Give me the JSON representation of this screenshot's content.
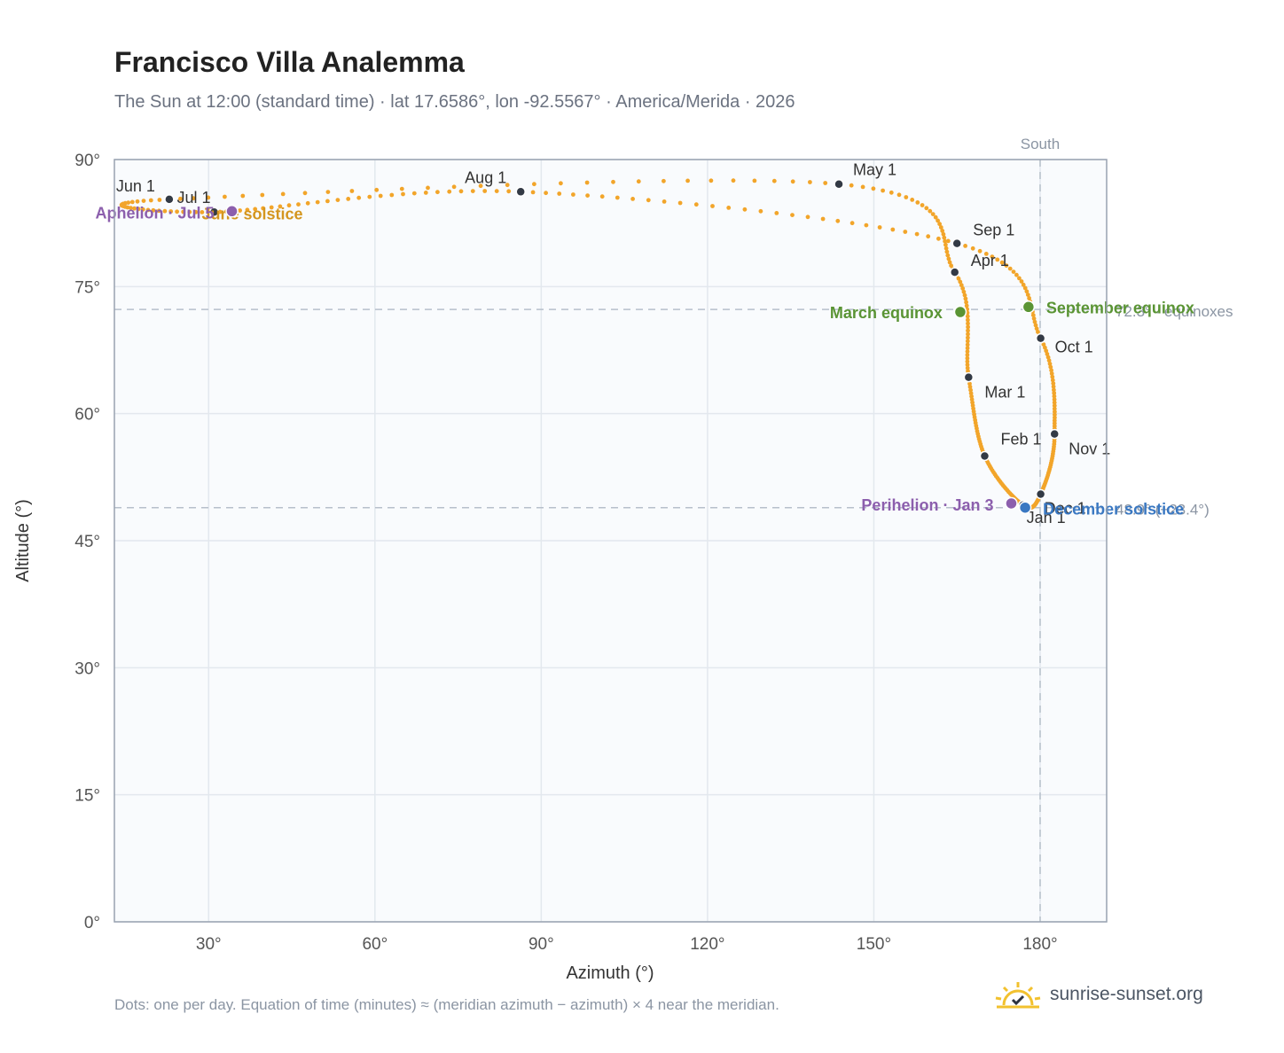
{
  "title": "Francisco Villa Analemma",
  "subtitle": "The Sun at 12:00 (standard time) · lat 17.6586°, lon -92.5567° · America/Merida · 2026",
  "footnote": "Dots: one per day. Equation of time (minutes) ≈ (meridian azimuth − azimuth) × 4 near the meridian.",
  "brand": "sunrise-sunset.org",
  "colors": {
    "curve": "#f2a52a",
    "month_marker": "#333a45",
    "equinox": "#5a9434",
    "solstice_june": "#d4961f",
    "solstice_december": "#3a78c2",
    "perihelion": "#8c5fad",
    "reference_line": "#b7c0cb",
    "plot_bg": "#f9fbfd"
  },
  "chart_data": {
    "type": "scatter",
    "xlabel": "Azimuth (°)",
    "ylabel": "Altitude (°)",
    "xlim": [
      13,
      192
    ],
    "ylim": [
      0,
      90
    ],
    "x_ticks": [
      30,
      60,
      90,
      120,
      150,
      180
    ],
    "x_tick_labels": [
      "30°",
      "60°",
      "90°",
      "120°",
      "150°",
      "180°"
    ],
    "y_ticks": [
      0,
      15,
      30,
      45,
      60,
      75,
      90
    ],
    "y_tick_labels": [
      "0°",
      "15°",
      "30°",
      "45°",
      "60°",
      "75°",
      "90°"
    ],
    "grid": true,
    "south_line": {
      "x": 180,
      "label": "South"
    },
    "reference_lines": [
      {
        "y": 72.3,
        "label": "72.3° · equinoxes"
      },
      {
        "y": 48.9,
        "label": "48.9° (−23.4°)"
      }
    ],
    "month_points": [
      {
        "label": "Jan 1",
        "az": 176.9,
        "alt": 49.2
      },
      {
        "label": "Feb 1",
        "az": 170.0,
        "alt": 55.0
      },
      {
        "label": "Mar 1",
        "az": 167.1,
        "alt": 64.3
      },
      {
        "label": "Apr 1",
        "az": 164.6,
        "alt": 76.7
      },
      {
        "label": "May 1",
        "az": 143.7,
        "alt": 87.1
      },
      {
        "label": "Jun 1",
        "az": 22.9,
        "alt": 85.3
      },
      {
        "label": "Jul 1",
        "az": 31.0,
        "alt": 83.8
      },
      {
        "label": "Aug 1",
        "az": 86.3,
        "alt": 86.2
      },
      {
        "label": "Sep 1",
        "az": 165.0,
        "alt": 80.1
      },
      {
        "label": "Oct 1",
        "az": 180.1,
        "alt": 68.9
      },
      {
        "label": "Nov 1",
        "az": 182.6,
        "alt": 57.6
      },
      {
        "label": "Dec 1",
        "az": 180.1,
        "alt": 50.5
      }
    ],
    "events": [
      {
        "label": "March equinox",
        "az": 165.6,
        "alt": 72.0,
        "color_key": "equinox"
      },
      {
        "label": "September equinox",
        "az": 177.9,
        "alt": 72.6,
        "color_key": "equinox"
      },
      {
        "label": "June solstice",
        "az": 34.2,
        "alt": 83.9,
        "color_key": "solstice_june"
      },
      {
        "label": "December solstice",
        "az": 177.3,
        "alt": 48.9,
        "color_key": "solstice_december"
      },
      {
        "label": "Perihelion · Jan 3",
        "az": 174.8,
        "alt": 49.4,
        "color_key": "perihelion"
      },
      {
        "label": "Aphelion · Jul 5",
        "az": 34.2,
        "alt": 83.9,
        "color_key": "perihelion"
      }
    ]
  }
}
